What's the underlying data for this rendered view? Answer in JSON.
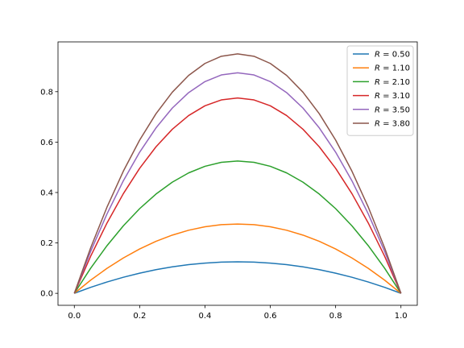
{
  "chart_data": {
    "type": "line",
    "title": "",
    "xlabel": "",
    "ylabel": "",
    "xlim": [
      -0.05,
      1.05
    ],
    "ylim": [
      -0.0475,
      0.9975
    ],
    "x_ticks": [
      0.0,
      0.2,
      0.4,
      0.6,
      0.8,
      1.0
    ],
    "x_tick_labels": [
      "0.0",
      "0.2",
      "0.4",
      "0.6",
      "0.8",
      "1.0"
    ],
    "y_ticks": [
      0.0,
      0.2,
      0.4,
      0.6,
      0.8
    ],
    "y_tick_labels": [
      "0.0",
      "0.2",
      "0.4",
      "0.6",
      "0.8"
    ],
    "grid": false,
    "legend_position": "top-right",
    "x": [
      0.0,
      0.05,
      0.1,
      0.15,
      0.2,
      0.25,
      0.3,
      0.35,
      0.4,
      0.45,
      0.5,
      0.55,
      0.6,
      0.65,
      0.7,
      0.75,
      0.8,
      0.85,
      0.9,
      0.95,
      1.0
    ],
    "series": [
      {
        "name": "R = 0.50",
        "legend_var": "R",
        "legend_value": "0.50",
        "color": "#1f77b4",
        "values": [
          0.0,
          0.0238,
          0.045,
          0.0638,
          0.08,
          0.0938,
          0.105,
          0.1138,
          0.12,
          0.1238,
          0.125,
          0.1238,
          0.12,
          0.1138,
          0.105,
          0.0938,
          0.08,
          0.0638,
          0.045,
          0.0238,
          0.0
        ]
      },
      {
        "name": "R = 1.10",
        "legend_var": "R",
        "legend_value": "1.10",
        "color": "#ff7f0e",
        "values": [
          0.0,
          0.0523,
          0.099,
          0.1403,
          0.176,
          0.2063,
          0.231,
          0.2503,
          0.264,
          0.2723,
          0.275,
          0.2723,
          0.264,
          0.2503,
          0.231,
          0.2063,
          0.176,
          0.1403,
          0.099,
          0.0523,
          0.0
        ]
      },
      {
        "name": "R = 2.10",
        "legend_var": "R",
        "legend_value": "2.10",
        "color": "#2ca02c",
        "values": [
          0.0,
          0.0998,
          0.189,
          0.2678,
          0.336,
          0.3938,
          0.441,
          0.4778,
          0.504,
          0.5198,
          0.525,
          0.5198,
          0.504,
          0.4778,
          0.441,
          0.3938,
          0.336,
          0.2678,
          0.189,
          0.0998,
          0.0
        ]
      },
      {
        "name": "R = 3.10",
        "legend_var": "R",
        "legend_value": "3.10",
        "color": "#d62728",
        "values": [
          0.0,
          0.1473,
          0.279,
          0.3953,
          0.496,
          0.5813,
          0.651,
          0.7053,
          0.744,
          0.7673,
          0.775,
          0.7673,
          0.744,
          0.7053,
          0.651,
          0.5813,
          0.496,
          0.3953,
          0.279,
          0.1473,
          0.0
        ]
      },
      {
        "name": "R = 3.50",
        "legend_var": "R",
        "legend_value": "3.50",
        "color": "#9467bd",
        "values": [
          0.0,
          0.1663,
          0.315,
          0.4463,
          0.56,
          0.6563,
          0.735,
          0.7963,
          0.84,
          0.8663,
          0.875,
          0.8663,
          0.84,
          0.7963,
          0.735,
          0.6563,
          0.56,
          0.4463,
          0.315,
          0.1663,
          0.0
        ]
      },
      {
        "name": "R = 3.80",
        "legend_var": "R",
        "legend_value": "3.80",
        "color": "#8c564b",
        "values": [
          0.0,
          0.1805,
          0.342,
          0.4845,
          0.608,
          0.7125,
          0.798,
          0.8645,
          0.912,
          0.9405,
          0.95,
          0.9405,
          0.912,
          0.8645,
          0.798,
          0.7125,
          0.608,
          0.4845,
          0.342,
          0.1805,
          0.0
        ]
      }
    ]
  }
}
